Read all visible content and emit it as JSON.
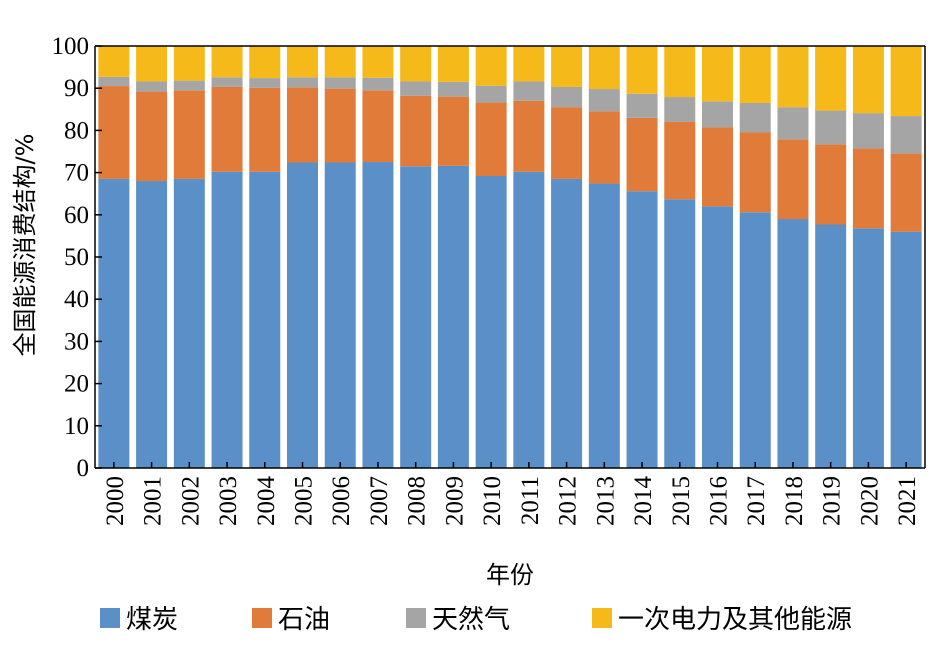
{
  "chart_data": {
    "type": "bar",
    "stacked": true,
    "title": "",
    "xlabel": "年份",
    "ylabel": "全国能源消费结构/%",
    "ylim": [
      0,
      100
    ],
    "yticks": [
      0,
      10,
      20,
      30,
      40,
      50,
      60,
      70,
      80,
      90,
      100
    ],
    "grid": false,
    "legend_position": "bottom",
    "categories": [
      "2000",
      "2001",
      "2002",
      "2003",
      "2004",
      "2005",
      "2006",
      "2007",
      "2008",
      "2009",
      "2010",
      "2011",
      "2012",
      "2013",
      "2014",
      "2015",
      "2016",
      "2017",
      "2018",
      "2019",
      "2020",
      "2021"
    ],
    "series": [
      {
        "name": "煤炭",
        "color": "#5B8FC8",
        "values": [
          68.5,
          68.0,
          68.5,
          70.2,
          70.2,
          72.4,
          72.4,
          72.5,
          71.5,
          71.6,
          69.2,
          70.2,
          68.5,
          67.4,
          65.6,
          63.7,
          62.0,
          60.6,
          59.0,
          57.7,
          56.8,
          56.0
        ]
      },
      {
        "name": "石油",
        "color": "#E07B39",
        "values": [
          22.0,
          21.2,
          21.0,
          20.1,
          19.9,
          17.8,
          17.5,
          17.0,
          16.7,
          16.4,
          17.4,
          16.8,
          17.0,
          17.1,
          17.4,
          18.3,
          18.7,
          18.9,
          18.9,
          19.0,
          18.9,
          18.5
        ]
      },
      {
        "name": "天然气",
        "color": "#A5A5A5",
        "values": [
          2.2,
          2.4,
          2.3,
          2.3,
          2.3,
          2.4,
          2.7,
          3.0,
          3.4,
          3.5,
          4.0,
          4.6,
          4.8,
          5.3,
          5.7,
          5.9,
          6.2,
          7.0,
          7.6,
          8.0,
          8.4,
          8.9
        ]
      },
      {
        "name": "一次电力及其他能源",
        "color": "#F5BA1A",
        "values": [
          7.3,
          8.4,
          8.2,
          7.4,
          7.6,
          7.4,
          7.4,
          7.5,
          8.4,
          8.5,
          9.4,
          8.4,
          9.7,
          10.2,
          11.3,
          12.1,
          13.1,
          13.5,
          14.5,
          15.3,
          15.9,
          16.6
        ]
      }
    ]
  }
}
